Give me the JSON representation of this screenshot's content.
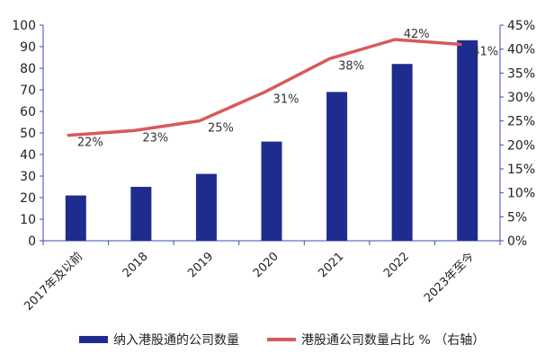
{
  "chart_data": {
    "type": "bar",
    "categories": [
      "2017年及以前",
      "2018",
      "2019",
      "2020",
      "2021",
      "2022",
      "2023年至今"
    ],
    "series": [
      {
        "name": "纳入港股通的公司数量",
        "type": "bar",
        "axis": "left",
        "values": [
          21,
          25,
          31,
          46,
          69,
          82,
          93
        ],
        "color": "#1f2c8f"
      },
      {
        "name": "港股通公司数量占比 % （右轴）",
        "type": "line",
        "axis": "right",
        "values": [
          22,
          23,
          25,
          31,
          38,
          42,
          41
        ],
        "labels": [
          "22%",
          "23%",
          "25%",
          "31%",
          "38%",
          "42%",
          "41%"
        ],
        "color": "#d9595b"
      }
    ],
    "y_left": {
      "min": 0,
      "max": 100,
      "ticks": [
        0,
        10,
        20,
        30,
        40,
        50,
        60,
        70,
        80,
        90,
        100
      ]
    },
    "y_right": {
      "min": 0,
      "max": 45,
      "ticks": [
        "0%",
        "5%",
        "10%",
        "15%",
        "20%",
        "25%",
        "30%",
        "35%",
        "40%",
        "45%"
      ]
    },
    "grid": false,
    "legend_position": "bottom"
  }
}
